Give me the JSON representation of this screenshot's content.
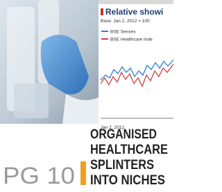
{
  "chart_inset": {
    "title": "Relative showi",
    "subtitle": "Base: Jan 2, 2012 = 100",
    "legend": [
      "BSE Sensex",
      "BSE Healthcare Inde"
    ],
    "x_label": "Jan 2, 2012"
  },
  "headline": [
    "ORGANISED",
    "HEALTHCARE",
    "SPLINTERS",
    "INTO NICHES"
  ],
  "page_ref": "PG 10"
}
